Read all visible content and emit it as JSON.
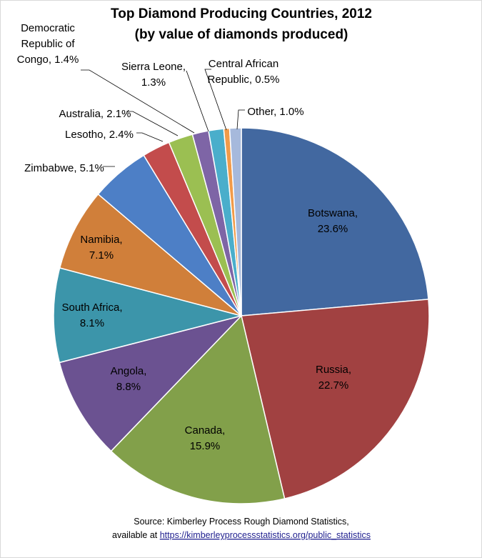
{
  "chart_data": {
    "type": "pie",
    "title": "Top Diamond Producing Countries, 2012",
    "subtitle": "(by value of diamonds produced)",
    "slices": [
      {
        "label": "Botswana",
        "value": 23.6,
        "display": "23.6%",
        "color": "#4268a0"
      },
      {
        "label": "Russia",
        "value": 22.7,
        "display": "22.7%",
        "color": "#a14141"
      },
      {
        "label": "Canada",
        "value": 15.9,
        "display": "15.9%",
        "color": "#82a04a"
      },
      {
        "label": "Angola",
        "value": 8.8,
        "display": "8.8%",
        "color": "#6b5291"
      },
      {
        "label": "South Africa",
        "value": 8.1,
        "display": "8.1%",
        "color": "#3c95aa"
      },
      {
        "label": "Namibia",
        "value": 7.1,
        "display": "7.1%",
        "color": "#d07f3a"
      },
      {
        "label": "Zimbabwe",
        "value": 5.1,
        "display": "5.1%",
        "color": "#4d7fc6"
      },
      {
        "label": "Lesotho",
        "value": 2.4,
        "display": "2.4%",
        "color": "#c34c4c"
      },
      {
        "label": "Australia",
        "value": 2.1,
        "display": "2.1%",
        "color": "#9bbf52"
      },
      {
        "label": "Democratic Republic of Congo",
        "value": 1.4,
        "display": "1.4%",
        "color": "#7e65a6"
      },
      {
        "label": "Sierra Leone",
        "value": 1.3,
        "display": "1.3%",
        "color": "#4aaecb"
      },
      {
        "label": "Central African Republic",
        "value": 0.5,
        "display": "0.5%",
        "color": "#f19b4a"
      },
      {
        "label": "Other",
        "value": 1.0,
        "display": "1.0%",
        "color": "#a6b9dc"
      }
    ],
    "label_lines": [
      [
        "Botswana,",
        "23.6%"
      ],
      [
        "Russia,",
        "22.7%"
      ],
      [
        "Canada,",
        "15.9%"
      ],
      [
        "Angola,",
        "8.8%"
      ],
      [
        "South Africa,",
        "8.1%"
      ],
      [
        "Namibia,",
        "7.1%"
      ],
      [
        "Zimbabwe, 5.1%"
      ],
      [
        "Lesotho, 2.4%"
      ],
      [
        "Australia, 2.1%"
      ],
      [
        "Democratic",
        "Republic of",
        "Congo, 1.4%"
      ],
      [
        "Sierra Leone,",
        "1.3%"
      ],
      [
        "Central African",
        "Republic, 0.5%"
      ],
      [
        "Other, 1.0%"
      ]
    ]
  },
  "source": {
    "line1": "Source: Kimberley Process  Rough Diamond Statistics,",
    "line2_prefix": "available at ",
    "line2_link": "https://kimberleyprocessstatistics.org/public_statistics"
  }
}
